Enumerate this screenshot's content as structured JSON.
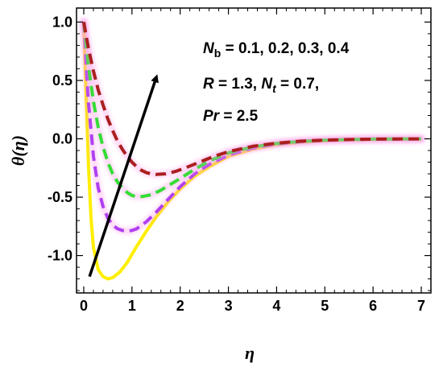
{
  "chart_data": {
    "type": "line",
    "title": "",
    "xlabel": "η",
    "ylabel": "θ(η)",
    "xlim": [
      -0.15,
      7.2
    ],
    "ylim": [
      -1.32,
      1.12
    ],
    "x_ticks": [
      0,
      1,
      2,
      3,
      4,
      5,
      6,
      7
    ],
    "x_tick_labels": [
      "0",
      "1",
      "2",
      "3",
      "4",
      "5",
      "6",
      "7"
    ],
    "y_ticks": [
      1.0,
      0.5,
      0.0,
      -0.5,
      -1.0
    ],
    "y_tick_labels": [
      "1.0",
      "0.5",
      "0.0",
      "-0.5",
      "-1.0"
    ],
    "grid": false,
    "annotations": {
      "line1": {
        "var": "N",
        "sub": "b",
        "rest": " = 0.1, 0.2, 0.3, 0.4"
      },
      "line2": {
        "a": "R",
        "b": " = 1.3, ",
        "c": "N",
        "d": "t",
        "e": " = 0.7,"
      },
      "line3": {
        "a": "Pr",
        "b": " = 2.5"
      }
    },
    "arrow": {
      "from": [
        0.12,
        -1.18
      ],
      "to": [
        1.5,
        0.52
      ]
    },
    "series": [
      {
        "Nb": 0.1,
        "color": "#ffee00",
        "dash": false,
        "shadow": false,
        "x": [
          0,
          0.05,
          0.1,
          0.15,
          0.2,
          0.3,
          0.4,
          0.5,
          0.6,
          0.75,
          0.9,
          1.1,
          1.3,
          1.5,
          1.75,
          2.0,
          2.3,
          2.6,
          3.0,
          3.5,
          4.0,
          4.5,
          5.0,
          5.5,
          6.0,
          6.5,
          7.0
        ],
        "y": [
          1.0,
          0.35,
          -0.25,
          -0.68,
          -0.93,
          -1.12,
          -1.18,
          -1.2,
          -1.19,
          -1.14,
          -1.06,
          -0.92,
          -0.79,
          -0.67,
          -0.54,
          -0.43,
          -0.32,
          -0.24,
          -0.15,
          -0.09,
          -0.05,
          -0.03,
          -0.015,
          -0.008,
          -0.004,
          -0.002,
          -0.001
        ]
      },
      {
        "Nb": 0.2,
        "color": "#b040f0",
        "dash": true,
        "shadow": true,
        "x": [
          0,
          0.05,
          0.1,
          0.2,
          0.3,
          0.4,
          0.5,
          0.6,
          0.7,
          0.8,
          0.9,
          1.0,
          1.1,
          1.3,
          1.5,
          1.75,
          2.0,
          2.3,
          2.6,
          3.0,
          3.5,
          4.0,
          4.5,
          5.0,
          5.5,
          6.0,
          6.5,
          7.0
        ],
        "y": [
          1.0,
          0.62,
          0.3,
          -0.15,
          -0.42,
          -0.58,
          -0.68,
          -0.74,
          -0.77,
          -0.785,
          -0.79,
          -0.785,
          -0.77,
          -0.71,
          -0.63,
          -0.52,
          -0.41,
          -0.3,
          -0.22,
          -0.14,
          -0.08,
          -0.045,
          -0.025,
          -0.013,
          -0.007,
          -0.003,
          -0.002,
          -0.001
        ]
      },
      {
        "Nb": 0.3,
        "color": "#33dd33",
        "dash": true,
        "shadow": true,
        "x": [
          0,
          0.05,
          0.1,
          0.2,
          0.3,
          0.4,
          0.5,
          0.6,
          0.7,
          0.8,
          0.9,
          1.0,
          1.1,
          1.2,
          1.4,
          1.6,
          1.8,
          2.0,
          2.3,
          2.6,
          3.0,
          3.5,
          4.0,
          4.5,
          5.0,
          5.5,
          6.0,
          6.5,
          7.0
        ],
        "y": [
          1.0,
          0.8,
          0.62,
          0.32,
          0.1,
          -0.07,
          -0.2,
          -0.3,
          -0.37,
          -0.42,
          -0.46,
          -0.485,
          -0.495,
          -0.495,
          -0.48,
          -0.44,
          -0.39,
          -0.34,
          -0.26,
          -0.19,
          -0.12,
          -0.07,
          -0.04,
          -0.022,
          -0.012,
          -0.006,
          -0.003,
          -0.0015,
          -0.001
        ]
      },
      {
        "Nb": 0.4,
        "color": "#aa1f1f",
        "dash": true,
        "shadow": true,
        "x": [
          0,
          0.05,
          0.1,
          0.2,
          0.3,
          0.4,
          0.5,
          0.6,
          0.7,
          0.8,
          0.9,
          1.0,
          1.1,
          1.2,
          1.3,
          1.4,
          1.5,
          1.7,
          1.9,
          2.1,
          2.4,
          2.7,
          3.0,
          3.5,
          4.0,
          4.5,
          5.0,
          5.5,
          6.0,
          6.5,
          7.0
        ],
        "y": [
          1.0,
          0.88,
          0.77,
          0.58,
          0.42,
          0.29,
          0.17,
          0.07,
          -0.02,
          -0.09,
          -0.15,
          -0.2,
          -0.24,
          -0.27,
          -0.29,
          -0.3,
          -0.305,
          -0.3,
          -0.28,
          -0.25,
          -0.2,
          -0.15,
          -0.11,
          -0.065,
          -0.037,
          -0.02,
          -0.011,
          -0.006,
          -0.003,
          -0.0015,
          -0.001
        ]
      }
    ]
  }
}
